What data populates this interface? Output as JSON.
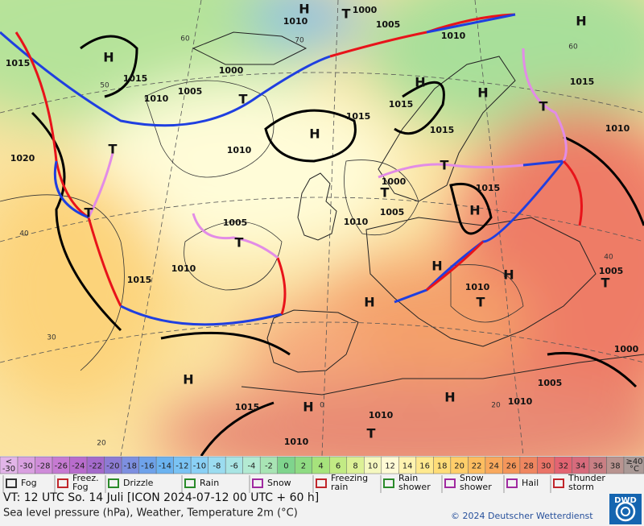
{
  "map": {
    "centers": [
      "H",
      "H",
      "T",
      "H",
      "H",
      "H",
      "H",
      "T",
      "T",
      "T",
      "T",
      "T",
      "T",
      "H",
      "T",
      "H",
      "H",
      "T",
      "T",
      "H",
      "H",
      "H",
      "H",
      "T"
    ],
    "isobar_labels": [
      1000,
      1010,
      1005,
      1010,
      1015,
      1000,
      1015,
      1015,
      1005,
      1010,
      1015,
      1015,
      1010,
      1015,
      1010,
      1020,
      1000,
      1015,
      1005,
      1010,
      1005,
      1010,
      1015,
      1010,
      1005,
      1000,
      1005,
      1010,
      1015,
      1010,
      1010
    ],
    "grid_labels": [
      60,
      70,
      60,
      50,
      40,
      40,
      30,
      20,
      20,
      0
    ]
  },
  "scale": {
    "low_label": [
      "<",
      "-30"
    ],
    "high_label": [
      "≥40",
      "°C"
    ],
    "low_color": "#e2b5e8",
    "high_color": "#aa9a97",
    "values": [
      -30,
      -28,
      -26,
      -24,
      -22,
      -20,
      -18,
      -16,
      -14,
      -12,
      -10,
      -8,
      -6,
      -4,
      -2,
      0,
      2,
      4,
      6,
      8,
      10,
      12,
      14,
      16,
      18,
      20,
      22,
      24,
      26,
      28,
      30,
      32,
      34,
      36,
      38
    ],
    "colors": [
      "#d9a0e0",
      "#cf8cd9",
      "#c67ad2",
      "#b86ccc",
      "#a46acb",
      "#8c7bd4",
      "#7d8fe0",
      "#6ea2ea",
      "#6bb3f0",
      "#7ac3f4",
      "#8ad0f5",
      "#9bdcf0",
      "#a9e5e4",
      "#b3ead2",
      "#a8e4b4",
      "#7fd48d",
      "#8fdb83",
      "#a6e37c",
      "#c2eb84",
      "#dcf196",
      "#f5f8c0",
      "#fffbd6",
      "#fff3b0",
      "#ffe98f",
      "#ffdd78",
      "#ffce6a",
      "#fdbd60",
      "#f9a95d",
      "#f4965a",
      "#ef8660",
      "#ea7468",
      "#e36472",
      "#d76b7c",
      "#c97f84",
      "#b99490"
    ]
  },
  "legend": [
    {
      "label": [
        "Fog"
      ]
    },
    {
      "label": [
        "Freez.",
        "Fog"
      ]
    },
    {
      "label": [
        "Drizzle"
      ]
    },
    {
      "label": [
        "Rain"
      ]
    },
    {
      "label": [
        "Snow"
      ]
    },
    {
      "label": [
        "Freezing",
        "rain"
      ]
    },
    {
      "label": [
        "Rain",
        "shower"
      ]
    },
    {
      "label": [
        "Snow",
        "shower"
      ]
    },
    {
      "label": [
        "Hail"
      ]
    },
    {
      "label": [
        "Thunder",
        "storm"
      ]
    }
  ],
  "footer": {
    "valid_time": "VT: 12 UTC So.  14 Juli [ICON 2024-07-12  00 UTC + 60 h]",
    "description": "Sea level pressure (hPa), Weather, Temperature 2m (°C)",
    "copyright": "© 2024 Deutscher Wetterdienst",
    "logo": "DWD"
  }
}
